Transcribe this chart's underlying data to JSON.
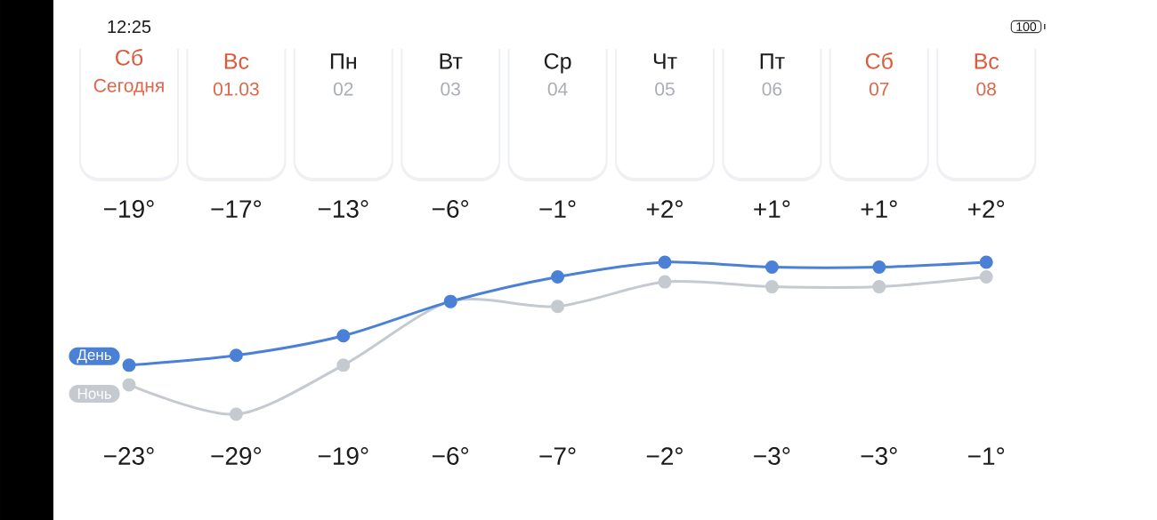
{
  "chart_data": {
    "type": "line",
    "categories": [
      "Сб\nСегодня",
      "Вс\n01.03",
      "Пн\n02",
      "Вт\n03",
      "Ср\n04",
      "Чт\n05",
      "Пт\n06",
      "Сб\n07",
      "Вс\n08"
    ],
    "series": [
      {
        "name": "День",
        "color": "#4a80d6",
        "values": [
          -19,
          -17,
          -13,
          -6,
          -1,
          2,
          1,
          1,
          2
        ],
        "value_labels": [
          "−19°",
          "−17°",
          "−13°",
          "−6°",
          "−1°",
          "+2°",
          "+1°",
          "+1°",
          "+2°"
        ]
      },
      {
        "name": "Ночь",
        "color": "#c5cad1",
        "values": [
          -23,
          -29,
          -19,
          -6,
          -7,
          -2,
          -3,
          -3,
          -1
        ],
        "value_labels": [
          "−23°",
          "−29°",
          "−19°",
          "−6°",
          "−7°",
          "−2°",
          "−3°",
          "−3°",
          "−1°"
        ]
      }
    ],
    "marker": "circle",
    "line_style": "solid",
    "annotations": [
      "12:25",
      "100"
    ]
  }
}
